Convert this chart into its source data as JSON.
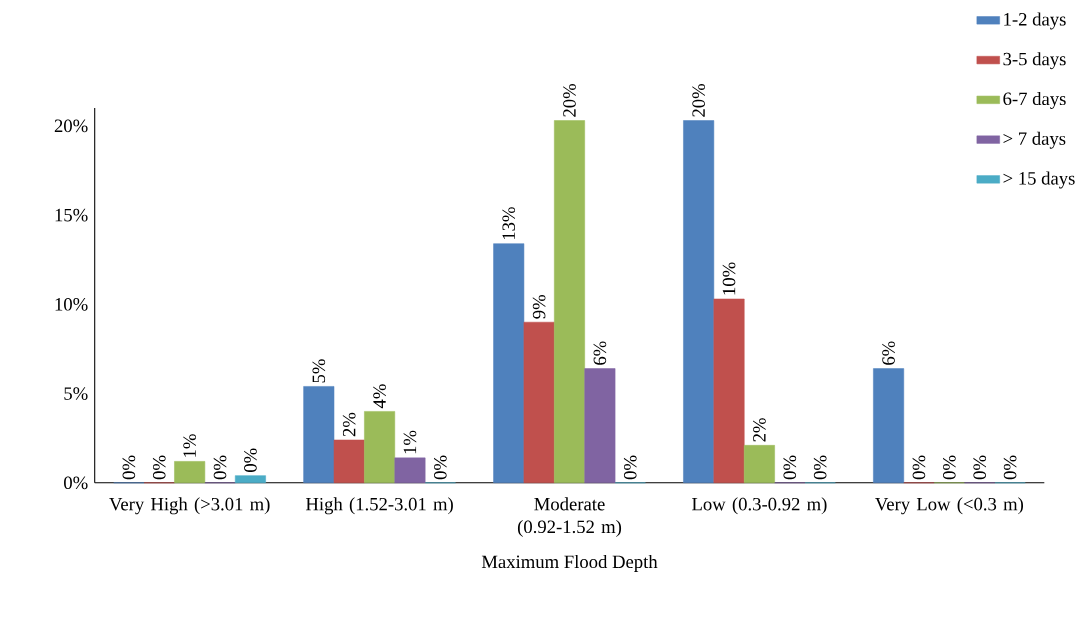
{
  "chart_data": {
    "type": "bar",
    "xlabel": "Maximum Flood Depth",
    "categories": [
      "Very High (>3.01 m)",
      "High (1.52-3.01 m)",
      "Moderate (0.92-1.52 m)",
      "Low (0.3-0.92 m)",
      "Very Low (<0.3 m)"
    ],
    "series": [
      {
        "name": "1-2 days",
        "color": "#4f81bd",
        "values": [
          0,
          5.4,
          13.4,
          20.3,
          6.4
        ],
        "value_labels": [
          "0%",
          "5%",
          "13%",
          "20%",
          "6%"
        ]
      },
      {
        "name": "3-5 days",
        "color": "#c0504d",
        "values": [
          0,
          2.4,
          9.0,
          10.3,
          0
        ],
        "value_labels": [
          "0%",
          "2%",
          "9%",
          "10%",
          "0%"
        ]
      },
      {
        "name": "6-7 days",
        "color": "#9bbb59",
        "values": [
          1.2,
          4.0,
          20.3,
          2.1,
          0
        ],
        "value_labels": [
          "1%",
          "4%",
          "20%",
          "2%",
          "0%"
        ]
      },
      {
        "name": "> 7 days",
        "color": "#8064a2",
        "values": [
          0,
          1.4,
          6.4,
          0,
          0
        ],
        "value_labels": [
          "0%",
          "1%",
          "6%",
          "0%",
          "0%"
        ]
      },
      {
        "name": "> 15 days",
        "color": "#4bacc6",
        "values": [
          0.4,
          0,
          0,
          0,
          0
        ],
        "value_labels": [
          "0%",
          "0%",
          "0%",
          "0%",
          "0%"
        ]
      }
    ],
    "ylim": [
      0,
      21
    ],
    "yticks": [
      {
        "value": 0,
        "label": "0%"
      },
      {
        "value": 5,
        "label": "5%"
      },
      {
        "value": 10,
        "label": "10%"
      },
      {
        "value": 15,
        "label": "15%"
      },
      {
        "value": 20,
        "label": "20%"
      }
    ],
    "legend": "top right"
  }
}
